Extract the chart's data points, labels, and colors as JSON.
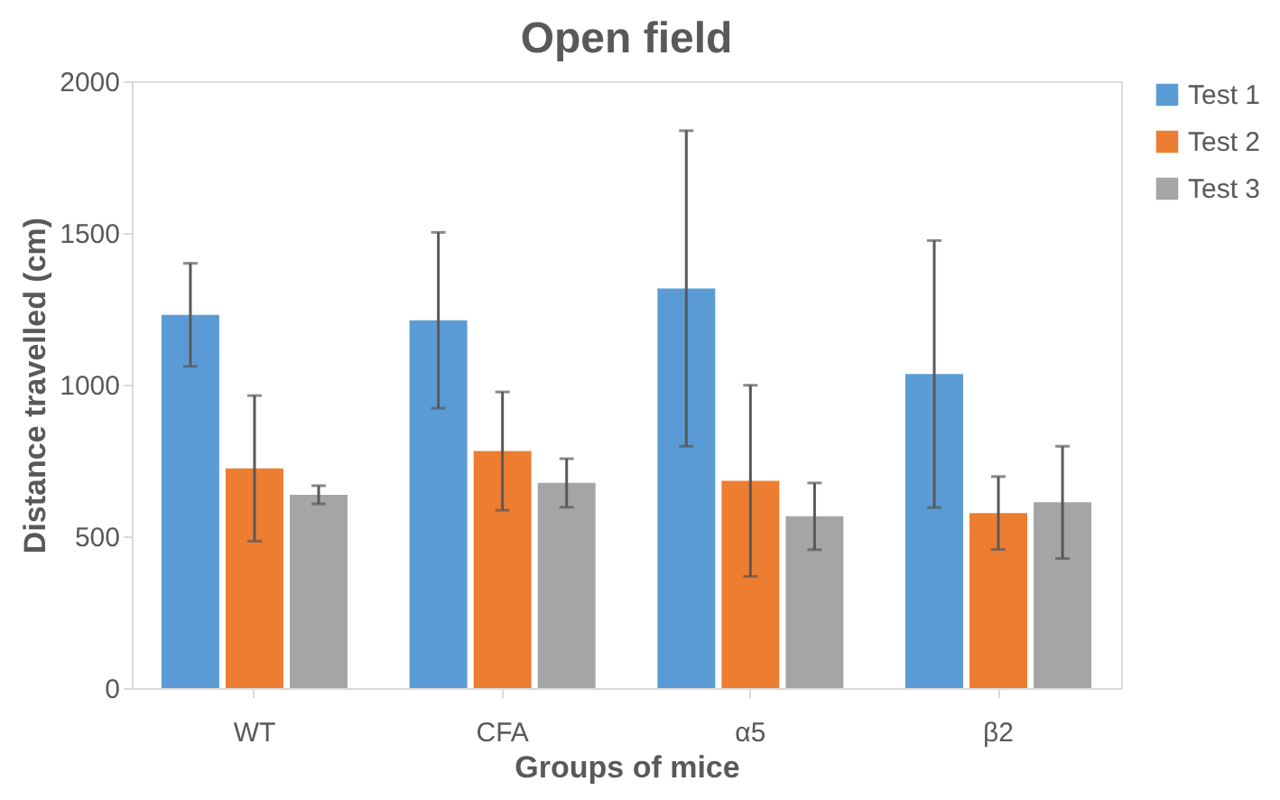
{
  "chart_data": {
    "type": "bar",
    "title": "Open field",
    "xlabel": "Groups of mice",
    "ylabel": "Distance travelled (cm)",
    "categories": [
      "WT",
      "CFA",
      "α5",
      "β2"
    ],
    "series": [
      {
        "name": "Test 1",
        "color": "#5b9bd5",
        "values": [
          1230,
          1212,
          1317,
          1035
        ],
        "errors": [
          170,
          290,
          520,
          440
        ]
      },
      {
        "name": "Test 2",
        "color": "#ed7d31",
        "values": [
          724,
          781,
          683,
          577
        ],
        "errors": [
          240,
          195,
          315,
          120
        ]
      },
      {
        "name": "Test 3",
        "color": "#a5a5a5",
        "values": [
          637,
          676,
          566,
          612
        ],
        "errors": [
          30,
          80,
          110,
          185
        ]
      }
    ],
    "ylim": [
      0,
      2000
    ],
    "yticks": [
      0,
      500,
      1000,
      1500,
      2000
    ],
    "grid": false,
    "legend": "top right"
  }
}
